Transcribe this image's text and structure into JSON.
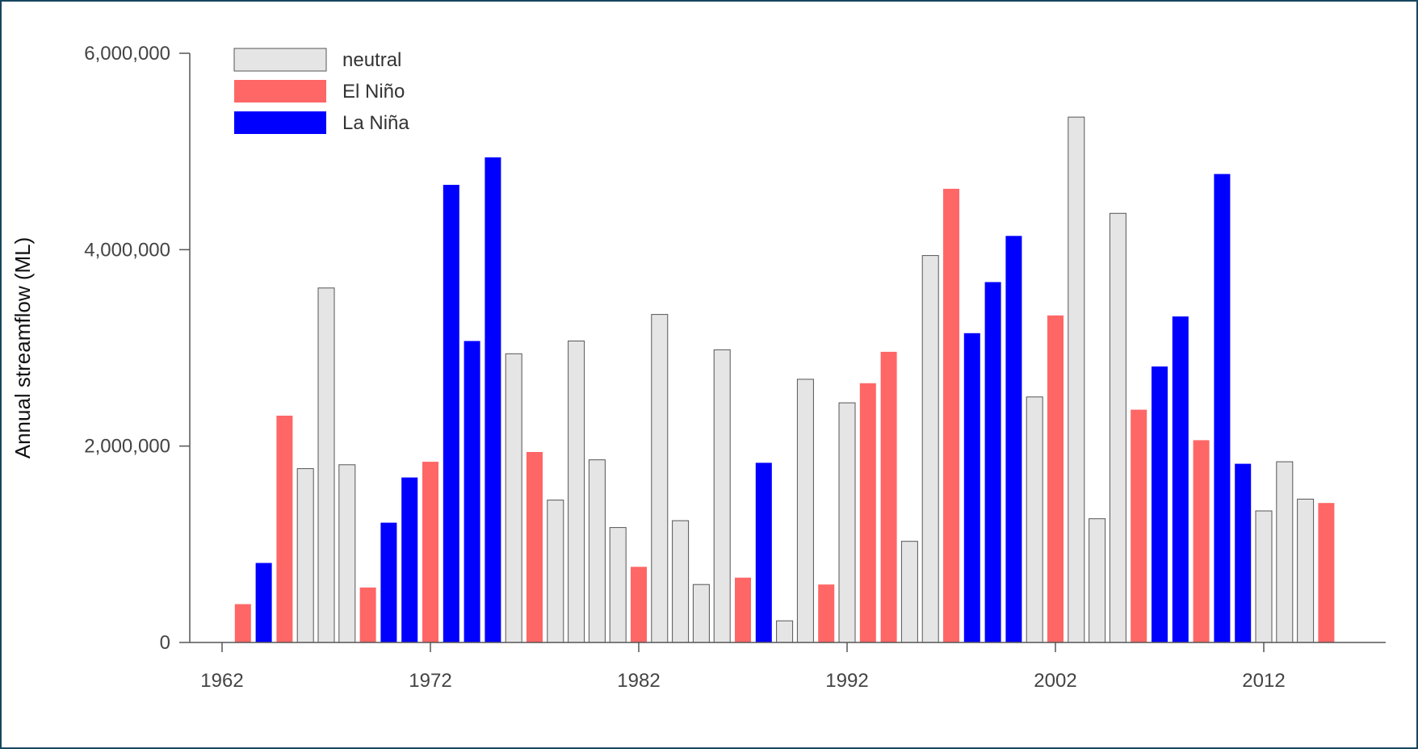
{
  "chart_data": {
    "type": "bar",
    "title": "",
    "xlabel": "",
    "ylabel": "Annual streamflow (ML)",
    "ylim": [
      0,
      6000000
    ],
    "y_ticks": [
      0,
      2000000,
      4000000,
      6000000
    ],
    "y_tick_labels": [
      "0",
      "2,000,000",
      "4,000,000",
      "6,000,000"
    ],
    "x_ticks": [
      1962,
      1972,
      1982,
      1992,
      2002,
      2012
    ],
    "x_tick_labels": [
      "1962",
      "1972",
      "1982",
      "1992",
      "2002",
      "2012"
    ],
    "legend_position": "top-left",
    "grid": false,
    "legend": [
      {
        "key": "neutral",
        "label": "neutral",
        "color": "#e5e5e5"
      },
      {
        "key": "elnino",
        "label": "El Niño",
        "color": "#ff6666"
      },
      {
        "key": "lanina",
        "label": "La Niña",
        "color": "#0000ff"
      }
    ],
    "years": [
      1963,
      1964,
      1965,
      1966,
      1967,
      1968,
      1969,
      1970,
      1971,
      1972,
      1973,
      1974,
      1975,
      1976,
      1977,
      1978,
      1979,
      1980,
      1981,
      1982,
      1983,
      1984,
      1985,
      1986,
      1987,
      1988,
      1989,
      1990,
      1991,
      1992,
      1993,
      1994,
      1995,
      1996,
      1997,
      1998,
      1999,
      2000,
      2001,
      2002,
      2003,
      2004,
      2005,
      2006,
      2007,
      2008,
      2009,
      2010,
      2011,
      2012,
      2013,
      2014,
      2015
    ],
    "phase": [
      "elnino",
      "lanina",
      "elnino",
      "neutral",
      "neutral",
      "neutral",
      "elnino",
      "lanina",
      "lanina",
      "elnino",
      "lanina",
      "lanina",
      "lanina",
      "neutral",
      "elnino",
      "neutral",
      "neutral",
      "neutral",
      "neutral",
      "elnino",
      "neutral",
      "neutral",
      "neutral",
      "neutral",
      "elnino",
      "lanina",
      "neutral",
      "neutral",
      "elnino",
      "neutral",
      "elnino",
      "elnino",
      "neutral",
      "neutral",
      "elnino",
      "lanina",
      "lanina",
      "lanina",
      "neutral",
      "elnino",
      "neutral",
      "neutral",
      "neutral",
      "elnino",
      "lanina",
      "lanina",
      "elnino",
      "lanina",
      "lanina",
      "neutral",
      "neutral",
      "neutral",
      "elnino"
    ],
    "values": [
      390000,
      810000,
      2310000,
      1770000,
      3610000,
      1810000,
      560000,
      1220000,
      1680000,
      1840000,
      4660000,
      3070000,
      4940000,
      2940000,
      1940000,
      1450000,
      3070000,
      1860000,
      1170000,
      770000,
      3340000,
      1240000,
      590000,
      2980000,
      660000,
      1830000,
      220000,
      2680000,
      590000,
      2440000,
      2640000,
      2960000,
      1030000,
      3940000,
      4620000,
      3150000,
      3670000,
      4140000,
      2500000,
      3330000,
      5350000,
      1260000,
      4370000,
      2370000,
      2810000,
      3320000,
      2060000,
      4770000,
      1820000,
      1340000,
      1840000,
      1460000,
      1420000
    ]
  }
}
